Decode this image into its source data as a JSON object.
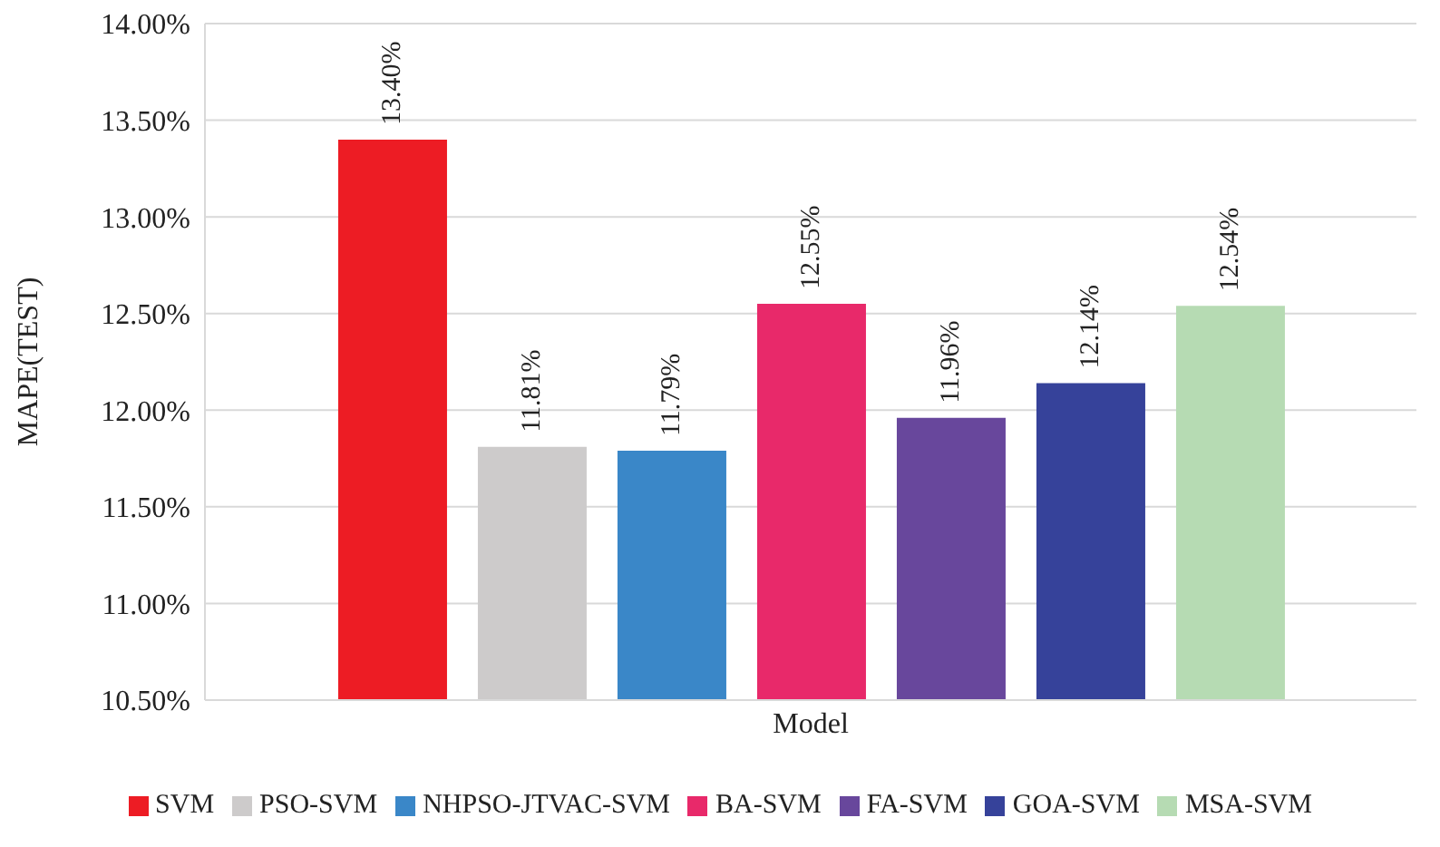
{
  "chart_data": {
    "type": "bar",
    "xlabel": "Model",
    "ylabel": "MAPE(TEST)",
    "categories": [
      null
    ],
    "series": [
      {
        "name": "SVM",
        "color": "#ed1c24",
        "values": [
          13.4
        ],
        "value_labels": [
          "13.40%"
        ]
      },
      {
        "name": "PSO-SVM",
        "color": "#cdcbcb",
        "values": [
          11.81
        ],
        "value_labels": [
          "11.81%"
        ]
      },
      {
        "name": "NHPSO-JTVAC-SVM",
        "color": "#3a87c8",
        "values": [
          11.79
        ],
        "value_labels": [
          "11.79%"
        ]
      },
      {
        "name": "BA-SVM",
        "color": "#e8296a",
        "values": [
          12.55
        ],
        "value_labels": [
          "12.55%"
        ]
      },
      {
        "name": "FA-SVM",
        "color": "#68479c",
        "values": [
          11.96
        ],
        "value_labels": [
          "11.96%"
        ]
      },
      {
        "name": "GOA-SVM",
        "color": "#36429a",
        "values": [
          12.14
        ],
        "value_labels": [
          "12.14%"
        ]
      },
      {
        "name": "MSA-SVM",
        "color": "#b6dbb3",
        "values": [
          12.54
        ],
        "value_labels": [
          "12.54%"
        ]
      }
    ],
    "ylim": [
      10.5,
      14
    ],
    "yticks": [
      {
        "value": 10.5,
        "label": "10.50%"
      },
      {
        "value": 11,
        "label": "11.00%"
      },
      {
        "value": 11.5,
        "label": "11.50%"
      },
      {
        "value": 12,
        "label": "12.00%"
      },
      {
        "value": 12.5,
        "label": "12.50%"
      },
      {
        "value": 13,
        "label": "13.00%"
      },
      {
        "value": 13.5,
        "label": "13.50%"
      },
      {
        "value": 14,
        "label": "14.00%"
      }
    ],
    "grid": "y",
    "legend": "bottom"
  }
}
